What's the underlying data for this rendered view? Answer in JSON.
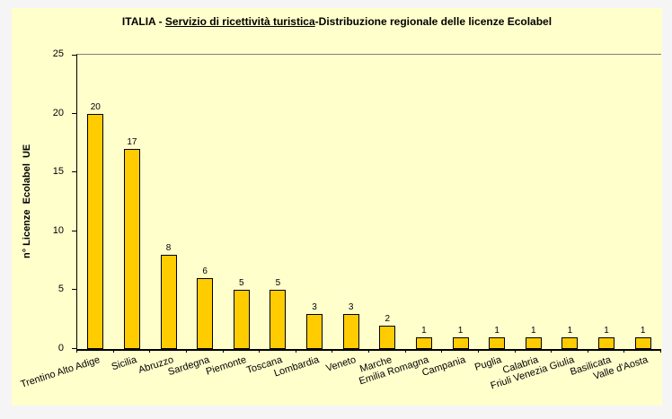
{
  "title": {
    "prefix": "ITALIA - ",
    "underlined": "Servizio di ricettività turistica",
    "suffix": "-Distribuzione regionale delle licenze Ecolabel"
  },
  "chart_data": {
    "type": "bar",
    "title": "ITALIA - Servizio di ricettività turistica-Distribuzione regionale delle licenze Ecolabel",
    "categories": [
      "Trentino Alto Adige",
      "Sicilia",
      "Abruzzo",
      "Sardegna",
      "Piemonte",
      "Toscana",
      "Lombardia",
      "Veneto",
      "Marche",
      "Emilia Romagna",
      "Campania",
      "Puglia",
      "Calabria",
      "Friuli Venezia Giulia",
      "Basilicata",
      "Valle d'Aosta"
    ],
    "values": [
      20,
      17,
      8,
      6,
      5,
      5,
      3,
      3,
      2,
      1,
      1,
      1,
      1,
      1,
      1,
      1
    ],
    "value_labels": true,
    "xlabel": "",
    "ylabel": "n° Licenze  Ecolabel  UE",
    "ylim": [
      0,
      25
    ],
    "yticks": [
      0,
      5,
      10,
      15,
      20,
      25
    ],
    "grid": false,
    "legend_position": "none",
    "colors": {
      "bar_fill": "#FFCC00",
      "bar_border": "#000000",
      "plot_background": "#FFFFCC",
      "chart_background": "#FFFFCC",
      "page_background": "#F5F5F6",
      "top_axis_line": "#808080",
      "axis_line": "#000000",
      "text": "#000000"
    }
  }
}
